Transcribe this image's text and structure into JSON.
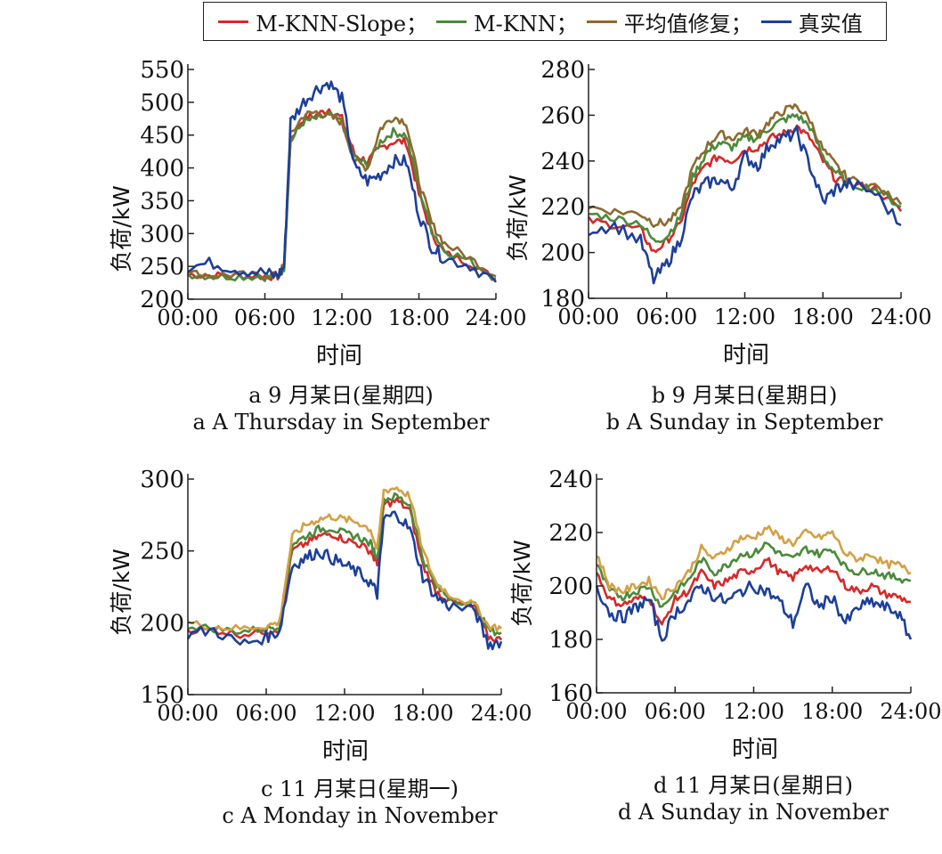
{
  "legend": [
    {
      "label": "M-KNN-Slope；",
      "color": "#d7282a"
    },
    {
      "label": "M-KNN；",
      "color": "#4a8a3a"
    },
    {
      "label": "平均值修复；",
      "color": "#8c6a2e"
    },
    {
      "label": "真实值",
      "color": "#1c3f9a"
    }
  ],
  "chart_data": [
    {
      "type": "line",
      "caption_cn": "a  9 月某日(星期四)",
      "caption_en": "a  A Thursday in September",
      "xlabel": "时间",
      "ylabel": "负荷/kW",
      "xticks": [
        "00:00",
        "06:00",
        "12:00",
        "18:00",
        "24:00"
      ],
      "yticks": [
        200,
        250,
        300,
        350,
        400,
        450,
        500,
        550
      ],
      "ylim": [
        200,
        550
      ],
      "x_hours": [
        0,
        2,
        4,
        6,
        7,
        7.5,
        8,
        9,
        10,
        11,
        12,
        13,
        14,
        15,
        16,
        17,
        18,
        19,
        20,
        22,
        24
      ],
      "series": [
        {
          "color": "#d7282a",
          "values": [
            238,
            236,
            236,
            235,
            235,
            250,
            445,
            475,
            480,
            490,
            475,
            420,
            410,
            430,
            440,
            440,
            360,
            300,
            270,
            255,
            230
          ]
        },
        {
          "color": "#4a8a3a",
          "values": [
            238,
            235,
            235,
            234,
            234,
            248,
            440,
            470,
            475,
            480,
            470,
            415,
            405,
            440,
            455,
            450,
            370,
            305,
            275,
            258,
            232
          ]
        },
        {
          "color": "#8c6a2e",
          "values": [
            240,
            237,
            237,
            236,
            236,
            252,
            450,
            480,
            485,
            478,
            470,
            410,
            400,
            460,
            478,
            470,
            380,
            315,
            285,
            262,
            235
          ]
        },
        {
          "color": "#1c3f9a",
          "values": [
            250,
            255,
            245,
            240,
            235,
            250,
            470,
            500,
            520,
            530,
            505,
            400,
            380,
            390,
            410,
            410,
            330,
            280,
            262,
            252,
            226
          ]
        }
      ]
    },
    {
      "type": "line",
      "caption_cn": "b  9 月某日(星期日)",
      "caption_en": "b  A Sunday in September",
      "xlabel": "时间",
      "ylabel": "负荷/kW",
      "xticks": [
        "00:00",
        "06:00",
        "12:00",
        "18:00",
        "24:00"
      ],
      "yticks": [
        180,
        200,
        220,
        240,
        260,
        280
      ],
      "ylim": [
        180,
        280
      ],
      "x_hours": [
        0,
        2,
        4,
        5,
        6,
        7,
        8,
        9,
        10,
        11,
        12,
        13,
        14,
        15,
        16,
        17,
        18,
        19,
        20,
        22,
        24
      ],
      "series": [
        {
          "color": "#d7282a",
          "values": [
            214,
            212,
            210,
            200,
            205,
            212,
            230,
            238,
            242,
            240,
            245,
            246,
            250,
            252,
            255,
            250,
            240,
            232,
            230,
            228,
            218
          ]
        },
        {
          "color": "#4a8a3a",
          "values": [
            217,
            215,
            213,
            205,
            207,
            215,
            233,
            243,
            248,
            246,
            250,
            250,
            255,
            258,
            260,
            255,
            242,
            235,
            230,
            228,
            220
          ]
        },
        {
          "color": "#8c6a2e",
          "values": [
            220,
            218,
            217,
            213,
            213,
            218,
            237,
            246,
            252,
            250,
            253,
            252,
            258,
            262,
            264,
            258,
            245,
            238,
            232,
            229,
            221
          ]
        },
        {
          "color": "#1c3f9a",
          "values": [
            210,
            212,
            205,
            188,
            195,
            205,
            225,
            230,
            232,
            228,
            242,
            238,
            248,
            250,
            252,
            238,
            222,
            228,
            230,
            226,
            212
          ]
        }
      ]
    },
    {
      "type": "line",
      "caption_cn": "c  11 月某日(星期一)",
      "caption_en": "c  A Monday in November",
      "xlabel": "时间",
      "ylabel": "负荷/kW",
      "xticks": [
        "00:00",
        "06:00",
        "12:00",
        "18:00",
        "24:00"
      ],
      "yticks": [
        150,
        200,
        250,
        300
      ],
      "ylim": [
        150,
        300
      ],
      "x_hours": [
        0,
        2,
        4,
        6,
        7,
        8,
        9,
        10,
        11,
        12,
        13,
        14,
        14.5,
        15,
        16,
        17,
        18,
        19,
        20,
        22,
        23,
        24
      ],
      "series": [
        {
          "color": "#d7282a",
          "values": [
            195,
            195,
            192,
            194,
            196,
            250,
            255,
            260,
            262,
            258,
            255,
            250,
            240,
            282,
            285,
            278,
            240,
            222,
            215,
            210,
            190,
            188
          ]
        },
        {
          "color": "#4a8a3a",
          "values": [
            198,
            196,
            194,
            196,
            198,
            255,
            260,
            265,
            266,
            262,
            260,
            255,
            245,
            286,
            288,
            282,
            245,
            225,
            218,
            212,
            195,
            193
          ]
        },
        {
          "color": "#d4a043",
          "values": [
            200,
            197,
            196,
            198,
            200,
            260,
            268,
            272,
            274,
            272,
            270,
            265,
            250,
            292,
            294,
            288,
            250,
            228,
            220,
            212,
            198,
            196
          ]
        },
        {
          "color": "#1c3f9a",
          "values": [
            192,
            195,
            185,
            190,
            194,
            240,
            245,
            250,
            245,
            240,
            235,
            228,
            220,
            272,
            276,
            265,
            232,
            218,
            212,
            208,
            185,
            187
          ]
        }
      ]
    },
    {
      "type": "line",
      "caption_cn": "d  11 月某日(星期日)",
      "caption_en": "d  A Sunday in November",
      "xlabel": "时间",
      "ylabel": "负荷/kW",
      "xticks": [
        "00:00",
        "06:00",
        "12:00",
        "18:00",
        "24:00"
      ],
      "yticks": [
        160,
        180,
        200,
        220,
        240
      ],
      "ylim": [
        160,
        240
      ],
      "x_hours": [
        0,
        1,
        2,
        3,
        4,
        5,
        6,
        7,
        8,
        9,
        10,
        11,
        12,
        13,
        14,
        15,
        16,
        17,
        18,
        19,
        20,
        21,
        22,
        23,
        24
      ],
      "series": [
        {
          "color": "#d7282a",
          "values": [
            205,
            195,
            193,
            195,
            196,
            185,
            195,
            198,
            205,
            200,
            202,
            205,
            206,
            210,
            205,
            203,
            208,
            205,
            207,
            200,
            198,
            200,
            197,
            196,
            194
          ]
        },
        {
          "color": "#4a8a3a",
          "values": [
            208,
            198,
            196,
            198,
            200,
            192,
            198,
            202,
            210,
            205,
            208,
            212,
            212,
            216,
            212,
            210,
            214,
            212,
            214,
            207,
            205,
            206,
            204,
            203,
            202
          ]
        },
        {
          "color": "#d4a043",
          "values": [
            212,
            200,
            198,
            200,
            202,
            196,
            200,
            205,
            214,
            210,
            214,
            218,
            218,
            222,
            218,
            216,
            220,
            218,
            220,
            212,
            210,
            212,
            208,
            208,
            205
          ]
        },
        {
          "color": "#1c3f9a",
          "values": [
            200,
            190,
            188,
            192,
            195,
            180,
            190,
            194,
            200,
            196,
            194,
            198,
            200,
            198,
            194,
            186,
            200,
            192,
            196,
            186,
            192,
            194,
            192,
            190,
            180
          ]
        }
      ]
    }
  ]
}
